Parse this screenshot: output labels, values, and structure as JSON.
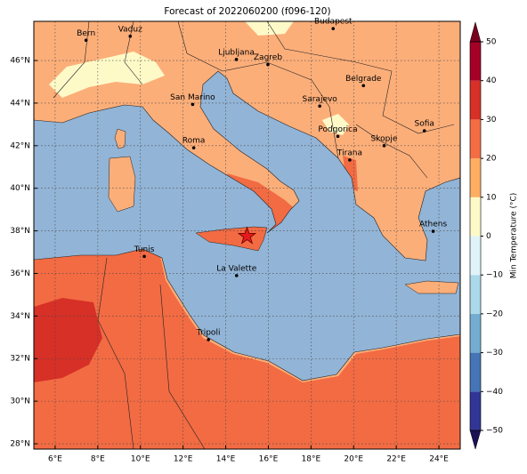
{
  "title": "Forecast of 2022060200 (f096-120)",
  "extent": {
    "lon": [
      5,
      25
    ],
    "lat": [
      27.75,
      47.84
    ]
  },
  "lon_ticks": [
    {
      "value": 6,
      "label": "6°E"
    },
    {
      "value": 8,
      "label": "8°E"
    },
    {
      "value": 10,
      "label": "10°E"
    },
    {
      "value": 12,
      "label": "12°E"
    },
    {
      "value": 14,
      "label": "14°E"
    },
    {
      "value": 16,
      "label": "16°E"
    },
    {
      "value": 18,
      "label": "18°E"
    },
    {
      "value": 20,
      "label": "20°E"
    },
    {
      "value": 22,
      "label": "22°E"
    },
    {
      "value": 24,
      "label": "24°E"
    }
  ],
  "lat_ticks": [
    {
      "value": 28,
      "label": "28°N"
    },
    {
      "value": 30,
      "label": "30°N"
    },
    {
      "value": 32,
      "label": "32°N"
    },
    {
      "value": 34,
      "label": "34°N"
    },
    {
      "value": 36,
      "label": "36°N"
    },
    {
      "value": 38,
      "label": "38°N"
    },
    {
      "value": 40,
      "label": "40°N"
    },
    {
      "value": 42,
      "label": "42°N"
    },
    {
      "value": 44,
      "label": "44°N"
    },
    {
      "value": 46,
      "label": "46°N"
    }
  ],
  "cities": [
    {
      "name": "Bern",
      "lon": 7.45,
      "lat": 46.95
    },
    {
      "name": "Vaduz",
      "lon": 9.52,
      "lat": 47.14
    },
    {
      "name": "Budapest",
      "lon": 19.04,
      "lat": 47.5
    },
    {
      "name": "Ljubljana",
      "lon": 14.5,
      "lat": 46.05
    },
    {
      "name": "Zagreb",
      "lon": 15.98,
      "lat": 45.81
    },
    {
      "name": "Belgrade",
      "lon": 20.46,
      "lat": 44.82
    },
    {
      "name": "San Marino",
      "lon": 12.45,
      "lat": 43.94
    },
    {
      "name": "Sarajevo",
      "lon": 18.41,
      "lat": 43.86
    },
    {
      "name": "Sofia",
      "lon": 23.32,
      "lat": 42.7
    },
    {
      "name": "Roma",
      "lon": 12.5,
      "lat": 41.9
    },
    {
      "name": "Podgorica",
      "lon": 19.26,
      "lat": 42.44
    },
    {
      "name": "Skopje",
      "lon": 21.43,
      "lat": 42.0
    },
    {
      "name": "Tirana",
      "lon": 19.82,
      "lat": 41.33
    },
    {
      "name": "Athens",
      "lon": 23.73,
      "lat": 37.98
    },
    {
      "name": "Tunis",
      "lon": 10.18,
      "lat": 36.8
    },
    {
      "name": "La Valette",
      "lon": 14.51,
      "lat": 35.9
    },
    {
      "name": "Tripoli",
      "lon": 13.19,
      "lat": 32.89
    }
  ],
  "marker": {
    "lon": 15.0,
    "lat": 37.75,
    "color": "#e31a1c"
  },
  "colorbar": {
    "label": "Min Temperature (°C)",
    "ticks": [
      {
        "value": -50,
        "label": "−50"
      },
      {
        "value": -40,
        "label": "−40"
      },
      {
        "value": -30,
        "label": "−30"
      },
      {
        "value": -20,
        "label": "−20"
      },
      {
        "value": -10,
        "label": "−10"
      },
      0,
      10,
      20,
      30,
      40,
      50
    ],
    "colors": [
      "#313695",
      "#4575b4",
      "#74add1",
      "#abd9e9",
      "#e0f3f8",
      "#fefac8",
      "#fdae61",
      "#f46d43",
      "#d73027",
      "#a50026"
    ],
    "under": "#1c1054",
    "over": "#7a0020"
  }
}
